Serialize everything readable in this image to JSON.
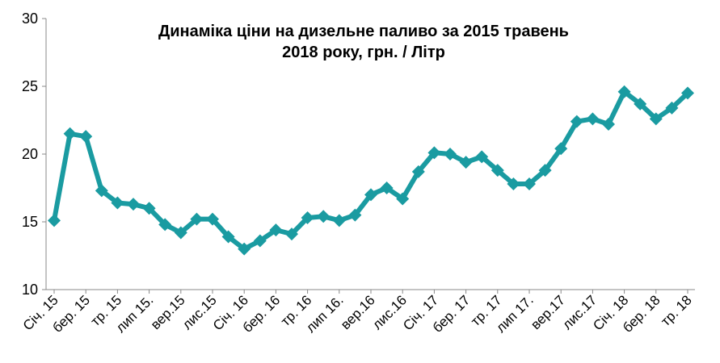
{
  "chart_data": {
    "type": "line",
    "title_lines": [
      "Динаміка ціни на дизельне паливо за 2015 травень",
      "2018 року, грн. / Літр"
    ],
    "ylim": [
      10,
      30
    ],
    "yticks": [
      "10",
      "15",
      "20",
      "25",
      "30"
    ],
    "grid": false,
    "legend": "none",
    "line_color": "#1a9ba1",
    "x_tick_labels": [
      "Січ. 15",
      "бер. 15",
      "тр. 15",
      "лип 15.",
      "вер.15",
      "лис.15",
      "Січ. 16",
      "бер. 16",
      "тр. 16",
      "лип 16.",
      "вер.16",
      "лис.16",
      "Січ. 17",
      "бер. 17",
      "тр. 17",
      "лип 17.",
      "вер.17",
      "лис.17",
      "Січ. 18",
      "бер. 18",
      "тр. 18"
    ],
    "series": [
      {
        "values": [
          15.1,
          21.5,
          21.3,
          17.3,
          16.4,
          16.3,
          16.0,
          14.8,
          14.2,
          15.2,
          15.2,
          13.9,
          13.0,
          13.6,
          14.4,
          14.1,
          15.3,
          15.4,
          15.1,
          15.5,
          17.0,
          17.5,
          16.7,
          18.7,
          20.1,
          20.0,
          19.4,
          19.8,
          18.8,
          17.8,
          17.8,
          18.8,
          20.4,
          22.4,
          22.6,
          22.2,
          24.6,
          23.7,
          22.6,
          23.4,
          24.5
        ]
      }
    ]
  }
}
